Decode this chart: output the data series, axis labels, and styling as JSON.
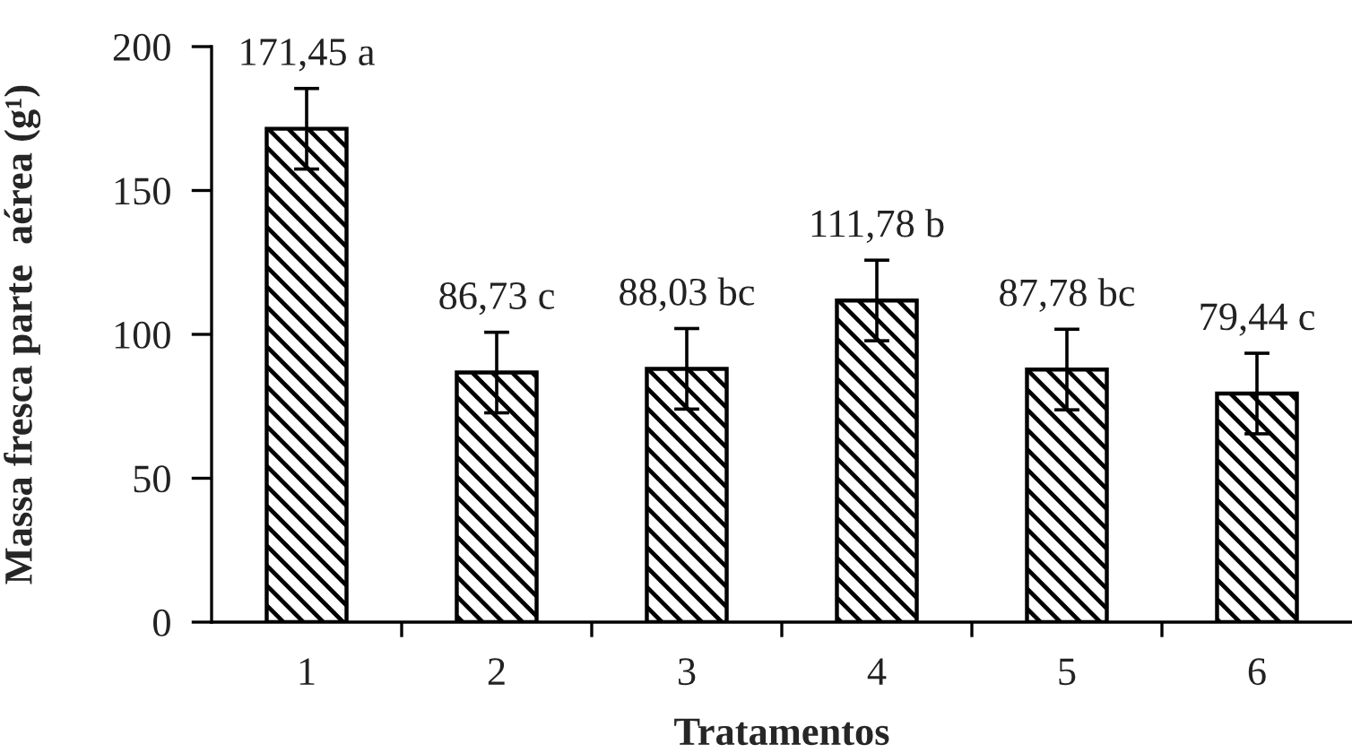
{
  "chart_data": {
    "type": "bar",
    "xlabel": "Tratamentos",
    "ylabel": "Massa fresca parte  aérea (g¹)",
    "categories": [
      "1",
      "2",
      "3",
      "4",
      "5",
      "6"
    ],
    "values": [
      171.45,
      86.73,
      88.03,
      111.78,
      87.78,
      79.44
    ],
    "errors": [
      14,
      14,
      14,
      14,
      14,
      14
    ],
    "value_labels": [
      "171,45 a",
      "86,73 c",
      "88,03 bc",
      "111,78 b",
      "87,78 bc",
      "79,44 c"
    ],
    "color": "#000000",
    "ylim": [
      0,
      200
    ],
    "yticks": [
      0,
      50,
      100,
      150,
      200
    ]
  }
}
